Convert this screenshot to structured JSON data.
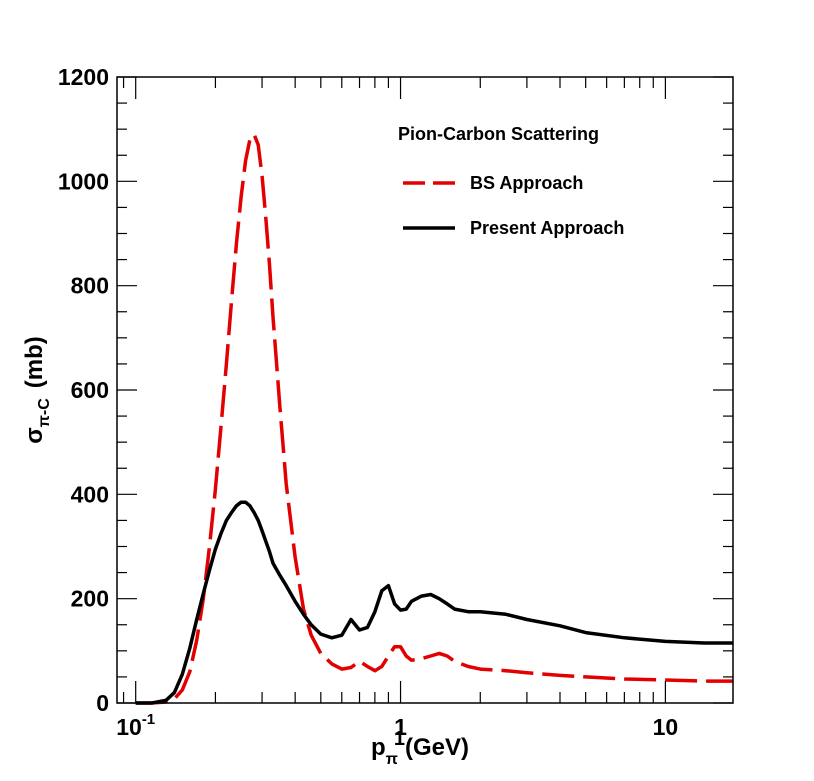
{
  "chart_data": {
    "type": "line",
    "title": "",
    "legend_title": "Pion-Carbon Scattering",
    "legend_position": "top-right",
    "xscale": "log",
    "xlim": [
      0.085,
      18
    ],
    "ylim": [
      0,
      1200
    ],
    "y_ticks": [
      0,
      200,
      400,
      600,
      800,
      1000,
      1200
    ],
    "y_tick_labels": [
      "0",
      "200",
      "400",
      "600",
      "800",
      "1000",
      "1200"
    ],
    "x_ticks": [
      0.1,
      1,
      10
    ],
    "x_tick_labels": [
      {
        "base": "10",
        "exp": "-1"
      },
      {
        "base": "1",
        "exp": ""
      },
      {
        "base": "10",
        "exp": ""
      }
    ],
    "xlabel": {
      "main": "p",
      "sub": "π",
      "sup": "1",
      "unit": "(GeV)"
    },
    "ylabel": {
      "main": "σ",
      "sub": "π-C",
      "unit": "(mb)"
    },
    "series": [
      {
        "name": "BS Approach",
        "color": "#e30000",
        "dash": "long-dash",
        "x": [
          0.1,
          0.115,
          0.13,
          0.14,
          0.15,
          0.16,
          0.17,
          0.18,
          0.19,
          0.2,
          0.21,
          0.22,
          0.23,
          0.24,
          0.25,
          0.26,
          0.27,
          0.28,
          0.29,
          0.3,
          0.31,
          0.32,
          0.33,
          0.35,
          0.37,
          0.4,
          0.43,
          0.46,
          0.5,
          0.55,
          0.6,
          0.65,
          0.7,
          0.75,
          0.8,
          0.85,
          0.9,
          0.95,
          1.0,
          1.05,
          1.1,
          1.2,
          1.3,
          1.4,
          1.5,
          1.6,
          1.8,
          2.0,
          2.5,
          3.0,
          4.0,
          5.0,
          7.0,
          10.0,
          14.0,
          18.0
        ],
        "values": [
          0,
          0,
          2,
          8,
          25,
          60,
          120,
          200,
          300,
          410,
          530,
          650,
          770,
          880,
          970,
          1040,
          1080,
          1090,
          1070,
          1010,
          930,
          840,
          740,
          570,
          420,
          280,
          180,
          130,
          95,
          75,
          65,
          68,
          80,
          70,
          62,
          70,
          90,
          108,
          108,
          90,
          82,
          85,
          90,
          95,
          90,
          80,
          70,
          65,
          62,
          58,
          53,
          50,
          46,
          44,
          42,
          42
        ]
      },
      {
        "name": "Present Approach",
        "color": "#000000",
        "dash": "solid",
        "x": [
          0.1,
          0.115,
          0.13,
          0.14,
          0.15,
          0.16,
          0.17,
          0.18,
          0.19,
          0.2,
          0.21,
          0.22,
          0.23,
          0.24,
          0.25,
          0.26,
          0.27,
          0.28,
          0.29,
          0.3,
          0.31,
          0.32,
          0.33,
          0.35,
          0.37,
          0.4,
          0.43,
          0.46,
          0.5,
          0.55,
          0.6,
          0.65,
          0.7,
          0.75,
          0.8,
          0.85,
          0.9,
          0.95,
          1.0,
          1.05,
          1.1,
          1.2,
          1.3,
          1.4,
          1.5,
          1.6,
          1.8,
          2.0,
          2.5,
          3.0,
          4.0,
          5.0,
          7.0,
          10.0,
          14.0,
          18.0
        ],
        "values": [
          0,
          0,
          5,
          20,
          55,
          105,
          160,
          210,
          255,
          295,
          325,
          350,
          365,
          378,
          385,
          385,
          378,
          365,
          350,
          330,
          310,
          290,
          268,
          245,
          225,
          195,
          170,
          150,
          132,
          125,
          130,
          160,
          140,
          145,
          175,
          215,
          225,
          190,
          178,
          180,
          195,
          205,
          208,
          200,
          190,
          180,
          175,
          175,
          170,
          160,
          148,
          135,
          125,
          118,
          115,
          115
        ]
      }
    ]
  }
}
